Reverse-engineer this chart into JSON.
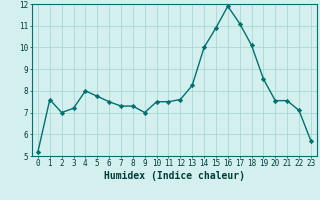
{
  "x": [
    0,
    1,
    2,
    3,
    4,
    5,
    6,
    7,
    8,
    9,
    10,
    11,
    12,
    13,
    14,
    15,
    16,
    17,
    18,
    19,
    20,
    21,
    22,
    23
  ],
  "y": [
    5.2,
    7.6,
    7.0,
    7.2,
    8.0,
    7.75,
    7.5,
    7.3,
    7.3,
    7.0,
    7.5,
    7.5,
    7.6,
    8.25,
    10.0,
    10.9,
    11.9,
    11.1,
    10.1,
    8.55,
    7.55,
    7.55,
    7.1,
    5.7
  ],
  "line_color": "#007070",
  "marker": "D",
  "marker_size": 2.2,
  "bg_color": "#d4f0ee",
  "grid_color": "#a8d8d4",
  "xlabel": "Humidex (Indice chaleur)",
  "ylim": [
    5,
    12
  ],
  "yticks": [
    5,
    6,
    7,
    8,
    9,
    10,
    11,
    12
  ],
  "xticks": [
    0,
    1,
    2,
    3,
    4,
    5,
    6,
    7,
    8,
    9,
    10,
    11,
    12,
    13,
    14,
    15,
    16,
    17,
    18,
    19,
    20,
    21,
    22,
    23
  ],
  "tick_fontsize": 5.5,
  "xlabel_fontsize": 7.0,
  "label_color": "#003c3c",
  "spine_color": "#007070",
  "linewidth": 1.0
}
